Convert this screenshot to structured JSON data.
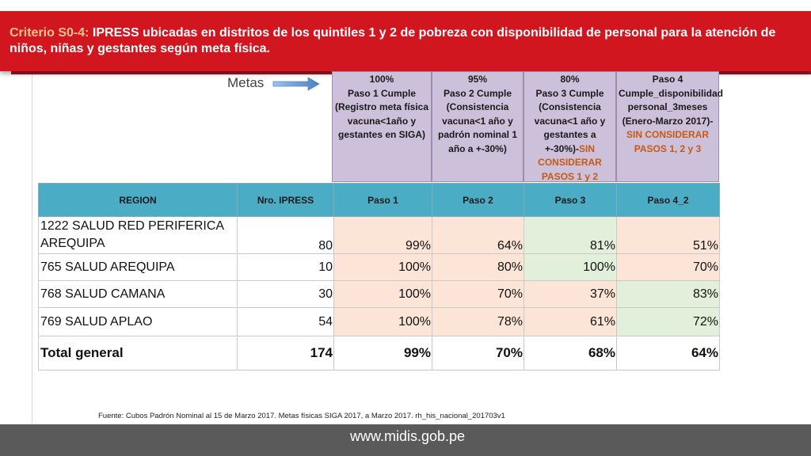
{
  "banner": {
    "criterion_label": "Criterio S0-4:",
    "title": "IPRESS ubicadas en distritos de los quintiles 1 y 2 de pobreza con disponibilidad de personal para la atención de niños, niñas y gestantes según meta física."
  },
  "metas_label": "Metas",
  "goals": [
    {
      "pct": "100%",
      "text": "Paso 1 Cumple (Registro meta física vacuna<1año y gestantes en SIGA)",
      "accent": ""
    },
    {
      "pct": "95%",
      "text": "Paso 2 Cumple (Consistencia vacuna<1 año y padrón nominal 1 año a +-30%)",
      "accent": ""
    },
    {
      "pct": "80%",
      "text": "Paso 3 Cumple (Consistencia vacuna<1 año y gestantes a +-30%)-",
      "accent": "SIN CONSIDERAR PASOS 1 y 2"
    },
    {
      "pct": "Paso 4",
      "text": "Cumple_disponibilidad personal_3meses (Enero-Marzo 2017)-",
      "accent": "SIN CONSIDERAR PASOS 1, 2 y 3"
    }
  ],
  "table": {
    "headers": [
      "REGION",
      "Nro. IPRESS",
      "Paso 1",
      "Paso 2",
      "Paso 3",
      "Paso 4_2"
    ],
    "rows": [
      {
        "region": "1222 SALUD RED PERIFERICA AREQUIPA",
        "ipress": "80",
        "paso1": "99%",
        "paso2": "64%",
        "paso3": "81%",
        "paso4": "51%"
      },
      {
        "region": "765 SALUD AREQUIPA",
        "ipress": "10",
        "paso1": "100%",
        "paso2": "80%",
        "paso3": "100%",
        "paso4": "70%"
      },
      {
        "region": "768 SALUD CAMANA",
        "ipress": "30",
        "paso1": "100%",
        "paso2": "70%",
        "paso3": "37%",
        "paso4": "83%"
      },
      {
        "region": "769 SALUD APLAO",
        "ipress": "54",
        "paso1": "100%",
        "paso2": "78%",
        "paso3": "61%",
        "paso4": "72%"
      }
    ],
    "total": {
      "region": "Total general",
      "ipress": "174",
      "paso1": "99%",
      "paso2": "70%",
      "paso3": "68%",
      "paso4": "64%"
    }
  },
  "source": "Fuente: Cubos Padrón Nominal al 15 de Marzo 2017. Metas físicas SIGA 2017, a Marzo 2017. rh_his_nacional_201703v1",
  "footer_url": "www.midis.gob.pe",
  "colors": {
    "banner": "#d2161f",
    "header": "#4bacc6",
    "goal": "#ccc0da",
    "peach": "#fce4d6",
    "green": "#e2efda",
    "footer": "#5a5a5a"
  }
}
